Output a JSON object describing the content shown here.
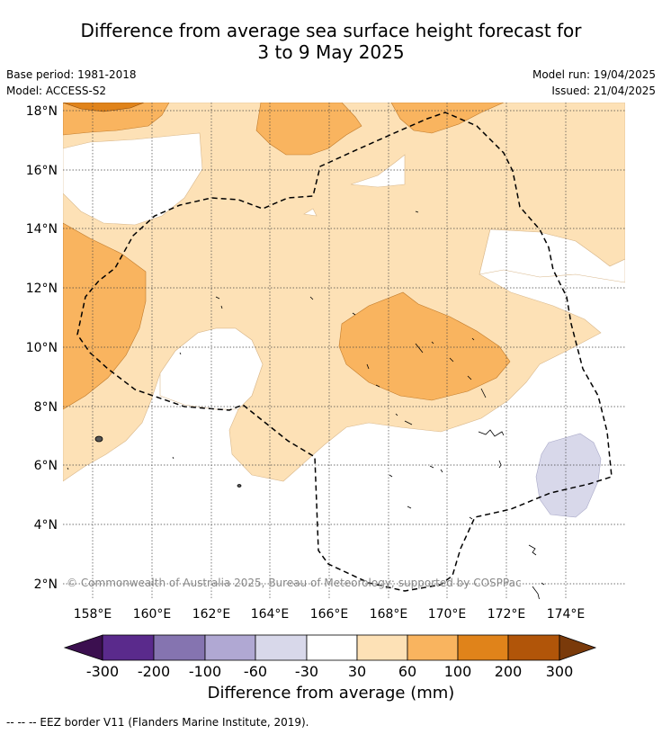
{
  "title_line1": "Difference from average sea surface height forecast for",
  "title_line2": "3 to 9 May 2025",
  "meta_left": {
    "line1": "Base period: 1981-2018",
    "line2": "Model: ACCESS-S2"
  },
  "meta_right": {
    "line1": "Model run: 19/04/2025",
    "line2": "Issued: 21/04/2025"
  },
  "lat_labels": [
    "18°N",
    "16°N",
    "14°N",
    "12°N",
    "10°N",
    "8°N",
    "6°N",
    "4°N",
    "2°N"
  ],
  "lon_labels": [
    "158°E",
    "160°E",
    "162°E",
    "164°E",
    "166°E",
    "168°E",
    "170°E",
    "172°E",
    "174°E"
  ],
  "copyright": "© Commonwealth of Australia 2025, Bureau of Meteorology; supported by COSPPac",
  "colorbar": {
    "ticks": [
      "-300",
      "-200",
      "-100",
      "-60",
      "-30",
      "30",
      "60",
      "100",
      "200",
      "300"
    ],
    "colors": [
      "#3b0f4f",
      "#5a2a8c",
      "#8574b0",
      "#b0a8d3",
      "#d8d8ea",
      "#ffffff",
      "#fde1b6",
      "#f9b45f",
      "#e0831a",
      "#b15509",
      "#7a3a0a"
    ],
    "label": "Difference from average (mm)"
  },
  "footnote": "--  --  -- EEZ border V11 (Flanders Marine Institute, 2019)."
}
